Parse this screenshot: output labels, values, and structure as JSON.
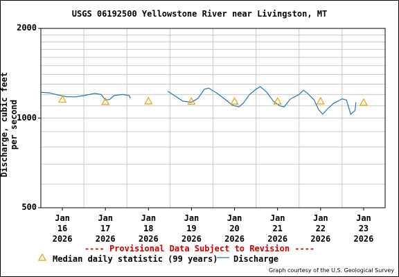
{
  "chart_data": {
    "type": "line",
    "title": "USGS 06192500 Yellowstone River near Livingston, MT",
    "ylabel": "Discharge, cubic feet per second",
    "yscale": "log",
    "ylim": [
      500,
      2000
    ],
    "yticks": [
      {
        "value": 500,
        "label": "500"
      },
      {
        "value": 1000,
        "label": "1000"
      },
      {
        "value": 2000,
        "label": "2000"
      }
    ],
    "xticks": [
      {
        "x": 16,
        "month": "Jan",
        "day": "16",
        "year": "2026"
      },
      {
        "x": 17,
        "month": "Jan",
        "day": "17",
        "year": "2026"
      },
      {
        "x": 18,
        "month": "Jan",
        "day": "18",
        "year": "2026"
      },
      {
        "x": 19,
        "month": "Jan",
        "day": "19",
        "year": "2026"
      },
      {
        "x": 20,
        "month": "Jan",
        "day": "20",
        "year": "2026"
      },
      {
        "x": 21,
        "month": "Jan",
        "day": "21",
        "year": "2026"
      },
      {
        "x": 22,
        "month": "Jan",
        "day": "22",
        "year": "2026"
      },
      {
        "x": 23,
        "month": "Jan",
        "day": "23",
        "year": "2026"
      }
    ],
    "xlim": [
      15.5,
      23.5
    ],
    "grid": true,
    "series": [
      {
        "name": "Discharge",
        "color": "#1f77b4",
        "segments": [
          [
            [
              15.5,
              1220
            ],
            [
              15.7,
              1215
            ],
            [
              15.9,
              1195
            ],
            [
              16.1,
              1180
            ],
            [
              16.3,
              1178
            ],
            [
              16.5,
              1190
            ],
            [
              16.75,
              1210
            ],
            [
              16.9,
              1200
            ],
            [
              17.0,
              1150
            ],
            [
              17.1,
              1155
            ],
            [
              17.2,
              1190
            ],
            [
              17.4,
              1200
            ],
            [
              17.55,
              1190
            ],
            [
              17.58,
              1165
            ]
          ],
          [
            [
              18.45,
              1230
            ],
            [
              18.6,
              1190
            ],
            [
              18.8,
              1140
            ],
            [
              19.0,
              1130
            ],
            [
              19.15,
              1165
            ],
            [
              19.3,
              1250
            ],
            [
              19.4,
              1260
            ],
            [
              19.6,
              1210
            ],
            [
              19.8,
              1150
            ],
            [
              19.95,
              1105
            ],
            [
              20.1,
              1090
            ],
            [
              20.2,
              1120
            ],
            [
              20.35,
              1200
            ],
            [
              20.5,
              1250
            ],
            [
              20.6,
              1275
            ],
            [
              20.75,
              1220
            ],
            [
              20.9,
              1140
            ],
            [
              21.05,
              1100
            ],
            [
              21.15,
              1090
            ],
            [
              21.3,
              1160
            ],
            [
              21.5,
              1200
            ],
            [
              21.6,
              1240
            ],
            [
              21.7,
              1210
            ],
            [
              21.85,
              1150
            ],
            [
              21.95,
              1070
            ],
            [
              22.05,
              1030
            ],
            [
              22.15,
              1070
            ],
            [
              22.3,
              1120
            ],
            [
              22.45,
              1150
            ],
            [
              22.5,
              1160
            ],
            [
              22.6,
              1150
            ],
            [
              22.7,
              1030
            ],
            [
              22.8,
              1060
            ],
            [
              22.82,
              1130
            ]
          ]
        ]
      },
      {
        "name": "Median daily statistic (99 years)",
        "color": "#e8a000",
        "marker": "triangle",
        "points": [
          [
            16,
            1155
          ],
          [
            17,
            1135
          ],
          [
            18,
            1140
          ],
          [
            19,
            1138
          ],
          [
            20,
            1138
          ],
          [
            21,
            1138
          ],
          [
            22,
            1140
          ],
          [
            23,
            1128
          ]
        ]
      }
    ],
    "note": "---- Provisional Data Subject to Revision ----",
    "credit": "Graph courtesy of the U.S. Geological Survey"
  }
}
